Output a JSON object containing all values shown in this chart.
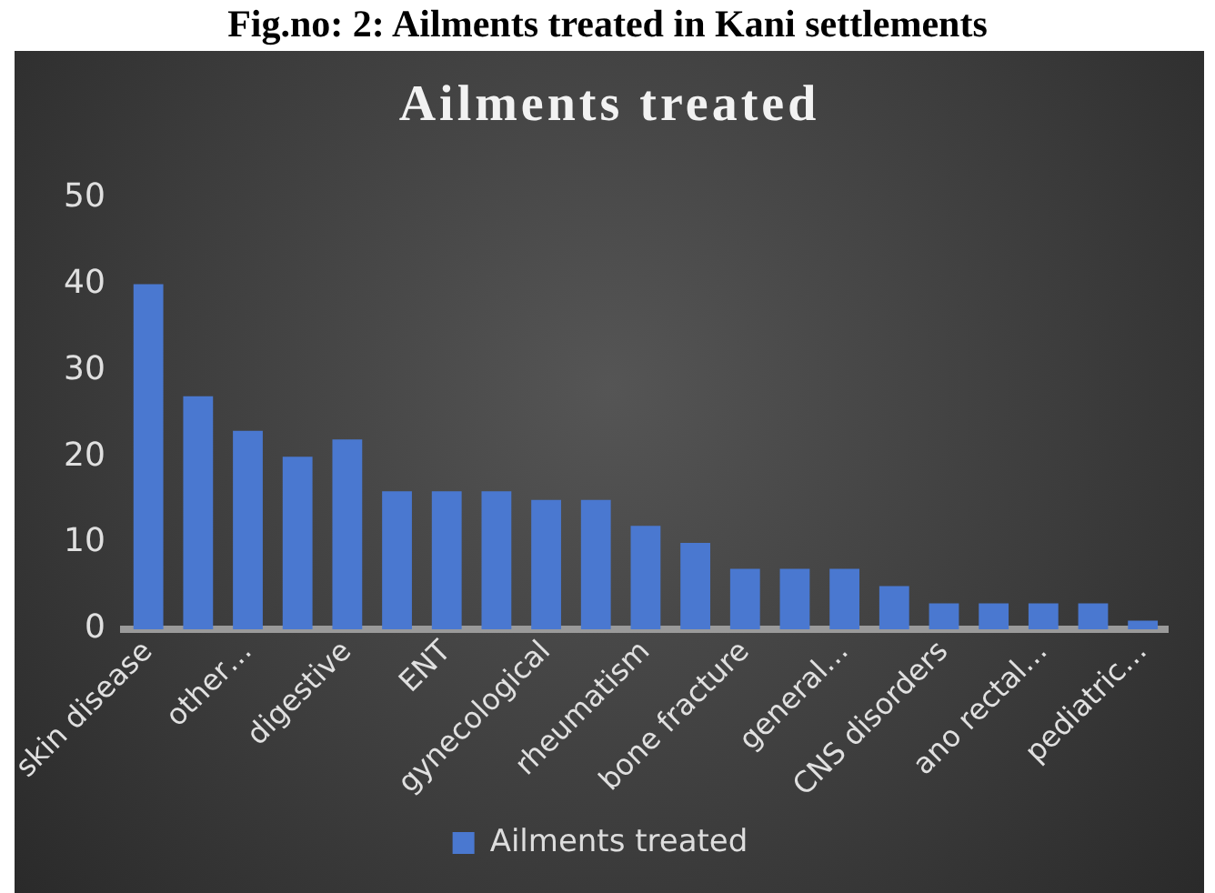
{
  "chart_data": {
    "type": "bar",
    "title": "Ailments treated",
    "annotations": [
      "Fig.no:   2: Ailments treated in Kani settlements"
    ],
    "categories": [
      "skin disease",
      null,
      "other…",
      null,
      "digestive",
      null,
      "ENT",
      null,
      "gynecological",
      null,
      "rheumatism",
      null,
      "bone fracture",
      null,
      "general…",
      null,
      "CNS disorders",
      null,
      "ano rectal…",
      null,
      "pediatric…"
    ],
    "series": [
      {
        "name": "Ailments treated",
        "color": "#4a78d0",
        "values": [
          40,
          27,
          23,
          20,
          22,
          16,
          16,
          16,
          15,
          15,
          12,
          10,
          7,
          7,
          7,
          5,
          3,
          3,
          3,
          3,
          1
        ]
      }
    ],
    "ylim": [
      0,
      50
    ],
    "yticks": [
      0,
      10,
      20,
      30,
      40,
      50
    ],
    "grid": false,
    "legend": "bottom"
  }
}
